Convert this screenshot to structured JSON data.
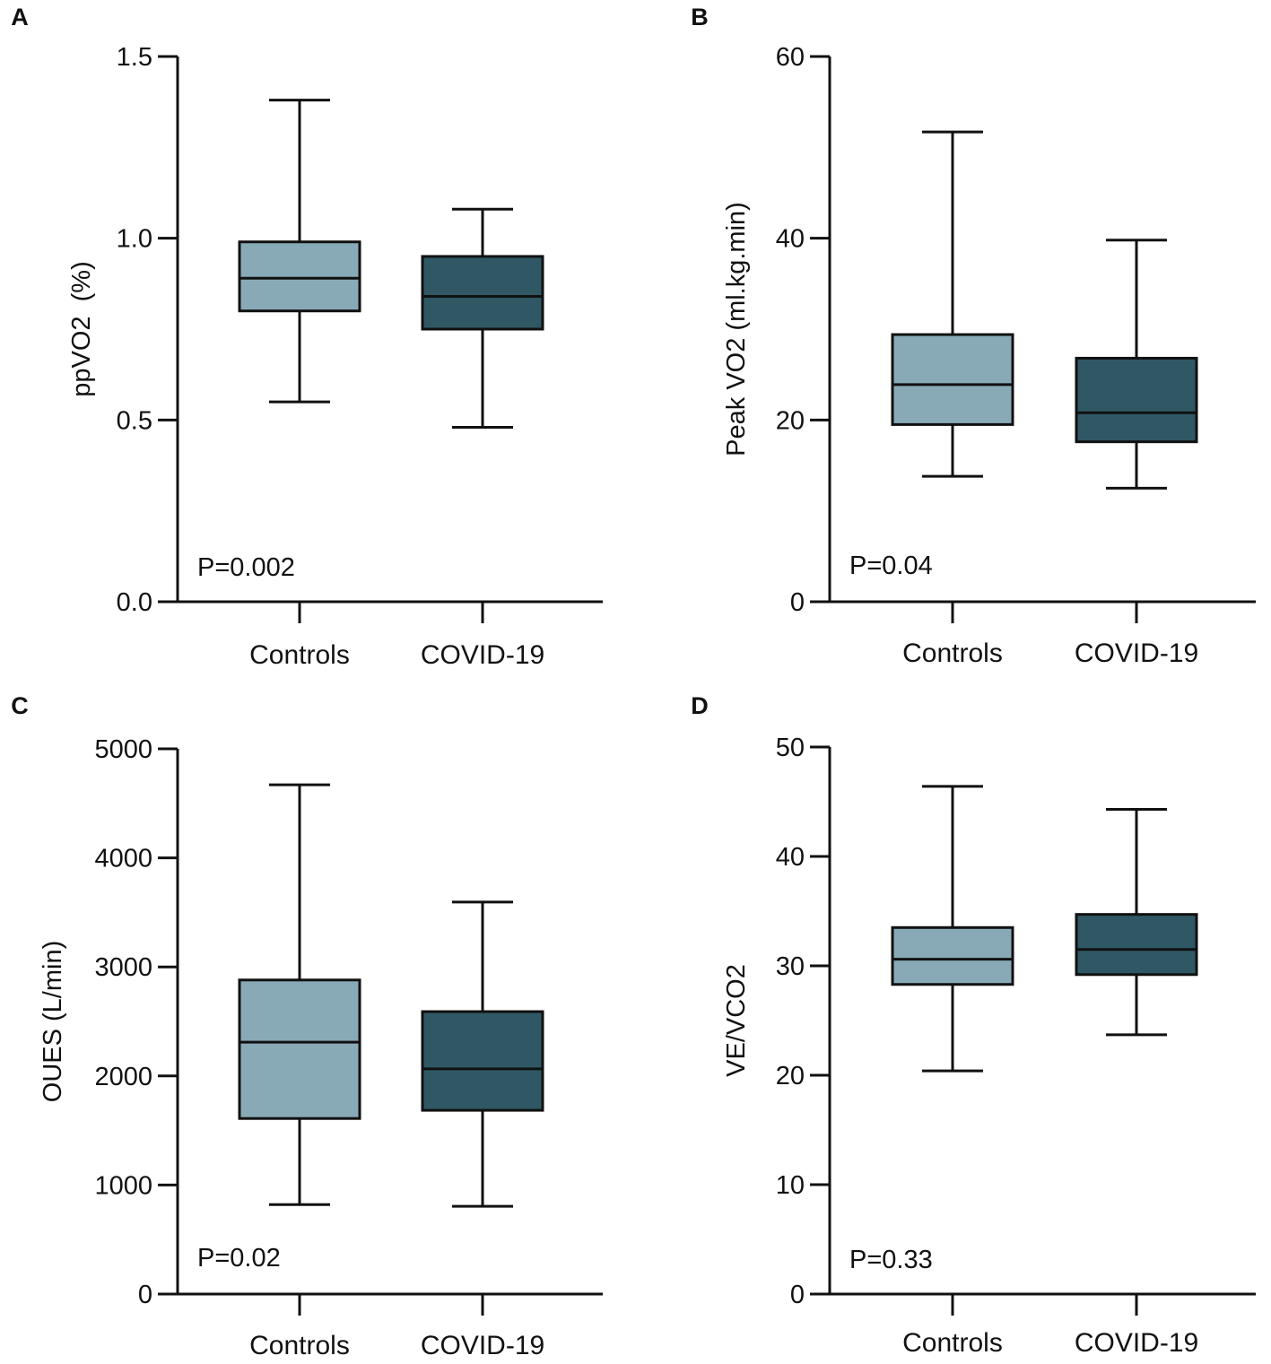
{
  "chart_data": [
    {
      "type": "box",
      "panel_label": "A",
      "ylabel": "ppVO2  (%)",
      "ylim": [
        0,
        1.5
      ],
      "yticks": [
        0,
        0.5,
        1.0,
        1.5
      ],
      "ytick_labels": [
        "0.0",
        "0.5",
        "1.0",
        "1.5"
      ],
      "categories": [
        "Controls",
        "COVID-19"
      ],
      "annotation": "P=0.002",
      "series": [
        {
          "name": "Controls",
          "min": 0.55,
          "q1": 0.8,
          "median": 0.89,
          "q3": 0.99,
          "max": 1.38
        },
        {
          "name": "COVID-19",
          "min": 0.48,
          "q1": 0.75,
          "median": 0.84,
          "q3": 0.95,
          "max": 1.08
        }
      ]
    },
    {
      "type": "box",
      "panel_label": "B",
      "ylabel": "Peak VO2 (ml.kg.min)",
      "ylim": [
        0,
        60
      ],
      "yticks": [
        0,
        20,
        40,
        60
      ],
      "ytick_labels": [
        "0",
        "20",
        "40",
        "60"
      ],
      "categories": [
        "Controls",
        "COVID-19"
      ],
      "annotation": "P=0.04",
      "series": [
        {
          "name": "Controls",
          "min": 13.8,
          "q1": 19.5,
          "median": 23.9,
          "q3": 29.4,
          "max": 51.7
        },
        {
          "name": "COVID-19",
          "min": 12.5,
          "q1": 17.6,
          "median": 20.8,
          "q3": 26.8,
          "max": 39.8
        }
      ]
    },
    {
      "type": "box",
      "panel_label": "C",
      "ylabel": "OUES (L/min)",
      "ylim": [
        0,
        5000
      ],
      "yticks": [
        0,
        1000,
        2000,
        3000,
        4000,
        5000
      ],
      "ytick_labels": [
        "0",
        "1000",
        "2000",
        "3000",
        "4000",
        "5000"
      ],
      "categories": [
        "Controls",
        "COVID-19"
      ],
      "annotation": "P=0.02",
      "series": [
        {
          "name": "Controls",
          "min": 820,
          "q1": 1610,
          "median": 2310,
          "q3": 2880,
          "max": 4670
        },
        {
          "name": "COVID-19",
          "min": 805,
          "q1": 1685,
          "median": 2065,
          "q3": 2590,
          "max": 3595
        }
      ]
    },
    {
      "type": "box",
      "panel_label": "D",
      "ylabel": "VE/VCO2",
      "ylim": [
        0,
        50
      ],
      "yticks": [
        0,
        10,
        20,
        30,
        40,
        50
      ],
      "ytick_labels": [
        "0",
        "10",
        "20",
        "30",
        "40",
        "50"
      ],
      "categories": [
        "Controls",
        "COVID-19"
      ],
      "annotation": "P=0.33",
      "series": [
        {
          "name": "Controls",
          "min": 20.4,
          "q1": 28.3,
          "median": 30.6,
          "q3": 33.5,
          "max": 46.4
        },
        {
          "name": "COVID-19",
          "min": 23.7,
          "q1": 29.2,
          "median": 31.5,
          "q3": 34.7,
          "max": 44.3
        }
      ]
    }
  ],
  "colors": {
    "Controls": "#88aab7",
    "COVID-19": "#2f5864",
    "line": "#111111"
  }
}
